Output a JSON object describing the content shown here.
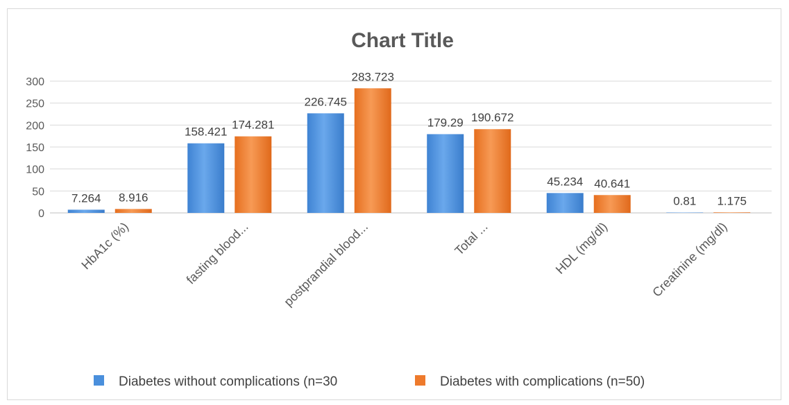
{
  "chart_data": {
    "type": "bar",
    "title": "Chart Title",
    "xlabel": "",
    "ylabel": "",
    "ylim": [
      0,
      300
    ],
    "yticks": [
      0,
      50,
      100,
      150,
      200,
      250,
      300
    ],
    "grid": true,
    "legend_position": "bottom",
    "categories": [
      "HbA1c (%)",
      "fasting blood...",
      "postprandial blood...",
      "Total ...",
      "HDL (mg/dl)",
      "Creatinine (mg/dl)"
    ],
    "series": [
      {
        "name": "Diabetes without complications (n=30",
        "values": [
          7.264,
          158.421,
          226.745,
          179.29,
          45.234,
          0.81
        ],
        "labels": [
          "7.264",
          "158.421",
          "226.745",
          "179.29",
          "45.234",
          "0.81"
        ],
        "color": "#4a8fdc"
      },
      {
        "name": "Diabetes with complications (n=50)",
        "values": [
          8.916,
          174.281,
          283.723,
          190.672,
          40.641,
          1.175
        ],
        "labels": [
          "8.916",
          "174.281",
          "283.723",
          "190.672",
          "40.641",
          "1.175"
        ],
        "color": "#ee7a2c"
      }
    ]
  }
}
